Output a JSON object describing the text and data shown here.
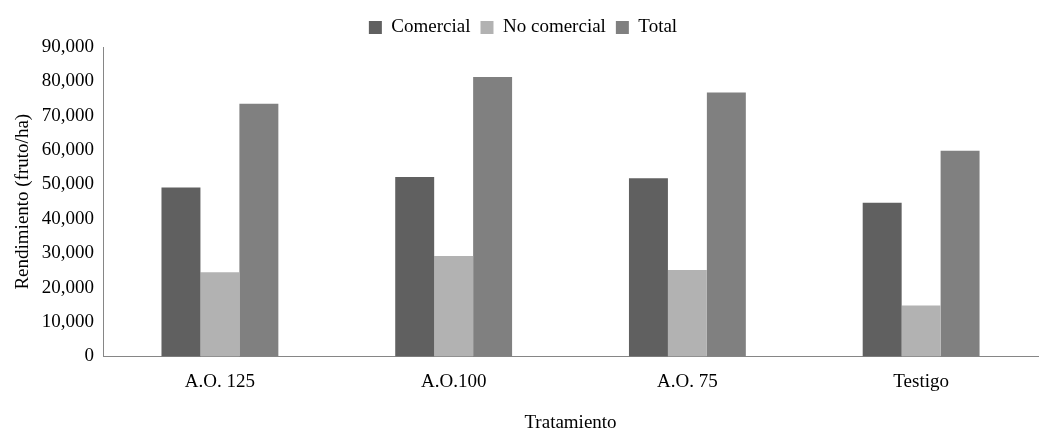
{
  "chart_data": {
    "type": "bar",
    "xlabel": "Tratamiento",
    "ylabel": "Rendimiento (fruto/ha)",
    "categories": [
      "A.O. 125",
      "A.O.100",
      "A.O. 75",
      "Testigo"
    ],
    "series": [
      {
        "name": "Comercial",
        "color": "#606060",
        "values": [
          49100,
          52200,
          51800,
          44700
        ]
      },
      {
        "name": "No comercial",
        "color": "#b2b2b2",
        "values": [
          24500,
          29200,
          25100,
          14800
        ]
      },
      {
        "name": "Total",
        "color": "#808080",
        "values": [
          73500,
          81300,
          76800,
          59800
        ]
      }
    ],
    "ylim": [
      0,
      90000
    ],
    "yticks": [
      0,
      {
        "value": 10000,
        "label": "10,000"
      },
      {
        "value": 20000,
        "label": "20,000"
      },
      {
        "value": 30000,
        "label": "30,000"
      },
      {
        "value": 40000,
        "label": "40,000"
      },
      {
        "value": 50000,
        "label": "50,000"
      },
      {
        "value": 60000,
        "label": "60,000"
      },
      {
        "value": 70000,
        "label": "70,000"
      },
      {
        "value": 80000,
        "label": "80,000"
      },
      {
        "value": 90000,
        "label": "90,000"
      }
    ],
    "grid": false,
    "legend": "top"
  }
}
